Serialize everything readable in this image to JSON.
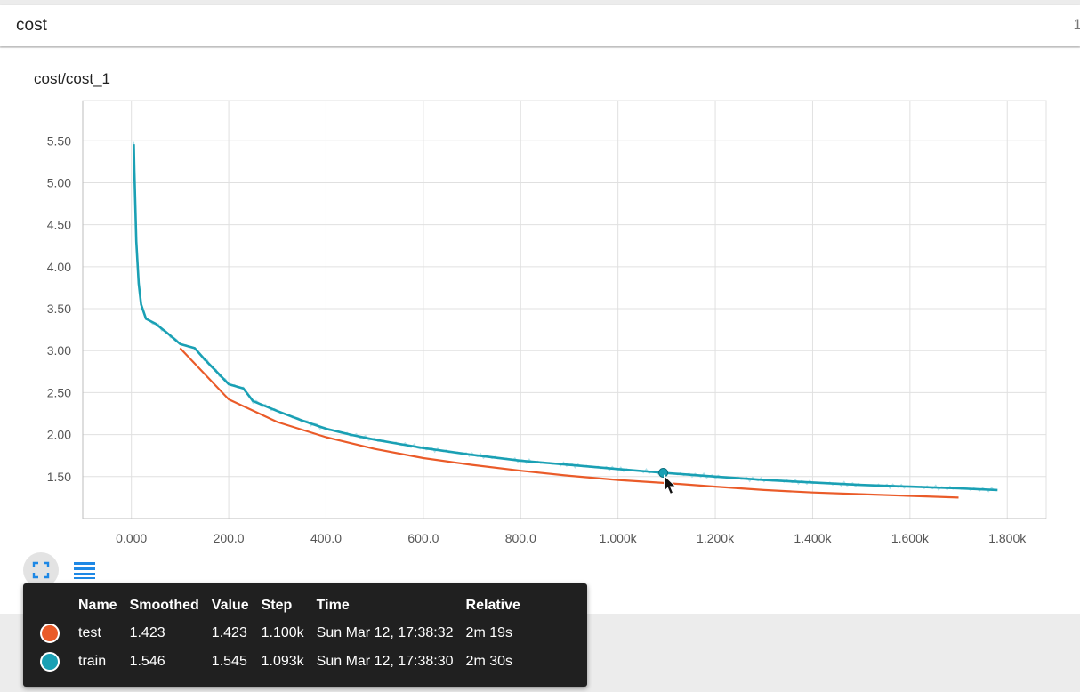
{
  "header": {
    "title": "cost",
    "clipped_glyph": "1"
  },
  "panel": {
    "title": "cost/cost_1"
  },
  "colors": {
    "train": "#1aa0b4",
    "train_raw": "#a9dfe8",
    "test": "#ea5b29",
    "grid": "#e0e0e0",
    "axis_text": "#555555"
  },
  "chart_data": {
    "type": "line",
    "title": "cost/cost_1",
    "xlabel": "",
    "ylabel": "",
    "xlim": [
      -100,
      1880
    ],
    "ylim": [
      1.0,
      5.98
    ],
    "x_ticks": [
      0,
      200,
      400,
      600,
      800,
      1000,
      1200,
      1400,
      1600,
      1800
    ],
    "x_tick_labels": [
      "0.000",
      "200.0",
      "400.0",
      "600.0",
      "800.0",
      "1.000k",
      "1.200k",
      "1.400k",
      "1.600k",
      "1.800k"
    ],
    "y_ticks": [
      1.5,
      2.0,
      2.5,
      3.0,
      3.5,
      4.0,
      4.5,
      5.0,
      5.5
    ],
    "y_tick_labels": [
      "1.50",
      "2.00",
      "2.50",
      "3.00",
      "3.50",
      "4.00",
      "4.50",
      "5.00",
      "5.50"
    ],
    "grid": true,
    "series": [
      {
        "name": "train",
        "color": "#1aa0b4",
        "x": [
          5,
          6,
          10,
          15,
          20,
          30,
          50,
          80,
          100,
          130,
          150,
          180,
          200,
          230,
          250,
          300,
          350,
          400,
          450,
          500,
          550,
          600,
          700,
          800,
          900,
          1000,
          1093,
          1200,
          1300,
          1400,
          1500,
          1600,
          1700,
          1780
        ],
        "y": [
          5.46,
          5.15,
          4.3,
          3.8,
          3.55,
          3.38,
          3.32,
          3.18,
          3.08,
          3.03,
          2.9,
          2.72,
          2.6,
          2.55,
          2.4,
          2.28,
          2.17,
          2.07,
          2.0,
          1.94,
          1.89,
          1.84,
          1.76,
          1.69,
          1.64,
          1.59,
          1.546,
          1.5,
          1.46,
          1.43,
          1.4,
          1.38,
          1.36,
          1.34
        ]
      },
      {
        "name": "test",
        "color": "#ea5b29",
        "x": [
          100,
          200,
          300,
          400,
          500,
          600,
          700,
          800,
          900,
          1000,
          1100,
          1200,
          1300,
          1400,
          1500,
          1600,
          1700
        ],
        "y": [
          3.03,
          2.42,
          2.15,
          1.97,
          1.83,
          1.72,
          1.64,
          1.57,
          1.51,
          1.46,
          1.423,
          1.38,
          1.34,
          1.31,
          1.29,
          1.27,
          1.25
        ]
      }
    ],
    "hover_point": {
      "series": "train",
      "x": 1093,
      "y": 1.546
    }
  },
  "controls": {
    "expand_icon": "expand-icon",
    "legend_icon": "list-icon"
  },
  "tooltip": {
    "columns": [
      "Name",
      "Smoothed",
      "Value",
      "Step",
      "Time",
      "Relative"
    ],
    "rows": [
      {
        "name": "test",
        "color": "#ea5b29",
        "smoothed": "1.423",
        "value": "1.423",
        "step": "1.100k",
        "time": "Sun Mar 12, 17:38:32",
        "relative": "2m 19s"
      },
      {
        "name": "train",
        "color": "#1aa0b4",
        "smoothed": "1.546",
        "value": "1.545",
        "step": "1.093k",
        "time": "Sun Mar 12, 17:38:30",
        "relative": "2m 30s"
      }
    ]
  }
}
